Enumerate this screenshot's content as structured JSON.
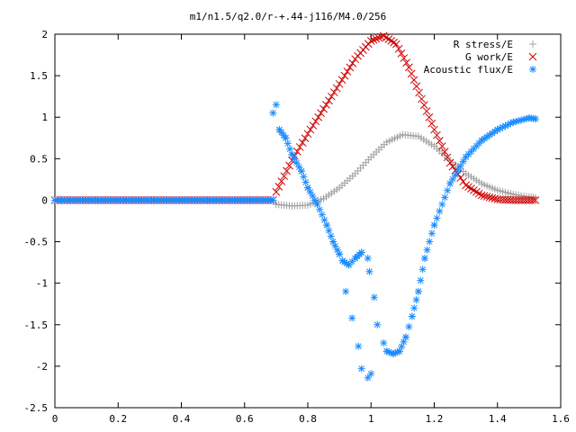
{
  "chart_data": {
    "type": "scatter",
    "title": "m1/n1.5/q2.0/r-+.44-j116/M4.0/256",
    "xlabel": "",
    "ylabel": "",
    "xlim": [
      0,
      1.6
    ],
    "ylim": [
      -2.5,
      2
    ],
    "grid": false,
    "legend_position": "top-right",
    "x_ticks": [
      "0",
      "0.2",
      "0.4",
      "0.6",
      "0.8",
      "1",
      "1.2",
      "1.4",
      "1.6"
    ],
    "y_ticks": [
      "2",
      "1.5",
      "1",
      "0.5",
      "0",
      "-0.5",
      "-1",
      "-1.5",
      "-2",
      "-2.5"
    ],
    "series": [
      {
        "name": "R stress/E",
        "color": "#a0a0a0",
        "marker": "plus",
        "points": [
          [
            0.0,
            0.0
          ],
          [
            0.69,
            0.0
          ],
          [
            0.7,
            -0.05
          ],
          [
            0.75,
            -0.07
          ],
          [
            0.8,
            -0.06
          ],
          [
            0.85,
            0.02
          ],
          [
            0.9,
            0.15
          ],
          [
            0.95,
            0.32
          ],
          [
            1.0,
            0.52
          ],
          [
            1.05,
            0.7
          ],
          [
            1.1,
            0.79
          ],
          [
            1.15,
            0.77
          ],
          [
            1.2,
            0.65
          ],
          [
            1.25,
            0.48
          ],
          [
            1.3,
            0.32
          ],
          [
            1.35,
            0.2
          ],
          [
            1.4,
            0.12
          ],
          [
            1.45,
            0.07
          ],
          [
            1.5,
            0.04
          ],
          [
            1.52,
            0.03
          ]
        ]
      },
      {
        "name": "G work/E",
        "color": "#cc0000",
        "marker": "cross",
        "points": [
          [
            0.0,
            0.0
          ],
          [
            0.69,
            0.0
          ],
          [
            0.7,
            0.1
          ],
          [
            0.75,
            0.48
          ],
          [
            0.8,
            0.8
          ],
          [
            0.85,
            1.1
          ],
          [
            0.9,
            1.4
          ],
          [
            0.95,
            1.7
          ],
          [
            1.0,
            1.92
          ],
          [
            1.04,
            1.98
          ],
          [
            1.08,
            1.88
          ],
          [
            1.12,
            1.6
          ],
          [
            1.16,
            1.22
          ],
          [
            1.2,
            0.85
          ],
          [
            1.25,
            0.45
          ],
          [
            1.3,
            0.18
          ],
          [
            1.35,
            0.06
          ],
          [
            1.4,
            0.01
          ],
          [
            1.45,
            0.0
          ],
          [
            1.52,
            0.0
          ]
        ]
      },
      {
        "name": "Acoustic flux/E",
        "color": "#1a8cff",
        "marker": "star",
        "points": [
          [
            0.0,
            0.0
          ],
          [
            0.69,
            0.0
          ],
          [
            0.69,
            1.05
          ],
          [
            0.7,
            1.15
          ],
          [
            0.71,
            0.85
          ],
          [
            0.73,
            0.75
          ],
          [
            0.75,
            0.55
          ],
          [
            0.78,
            0.35
          ],
          [
            0.8,
            0.15
          ],
          [
            0.83,
            -0.05
          ],
          [
            0.86,
            -0.3
          ],
          [
            0.88,
            -0.5
          ],
          [
            0.9,
            -0.65
          ],
          [
            0.91,
            -0.73
          ],
          [
            0.93,
            -0.78
          ],
          [
            0.95,
            -0.7
          ],
          [
            0.97,
            -0.63
          ],
          [
            0.99,
            -0.7
          ],
          [
            0.92,
            -1.1
          ],
          [
            0.94,
            -1.42
          ],
          [
            0.96,
            -1.76
          ],
          [
            0.97,
            -2.03
          ],
          [
            0.99,
            -2.14
          ],
          [
            1.0,
            -2.09
          ],
          [
            0.995,
            -0.86
          ],
          [
            1.01,
            -1.17
          ],
          [
            1.02,
            -1.5
          ],
          [
            1.04,
            -1.72
          ],
          [
            1.05,
            -1.82
          ],
          [
            1.07,
            -1.85
          ],
          [
            1.09,
            -1.82
          ],
          [
            1.11,
            -1.65
          ],
          [
            1.13,
            -1.4
          ],
          [
            1.15,
            -1.1
          ],
          [
            1.17,
            -0.7
          ],
          [
            1.2,
            -0.3
          ],
          [
            1.25,
            0.2
          ],
          [
            1.3,
            0.52
          ],
          [
            1.35,
            0.72
          ],
          [
            1.4,
            0.85
          ],
          [
            1.45,
            0.94
          ],
          [
            1.5,
            0.99
          ],
          [
            1.52,
            0.98
          ]
        ]
      }
    ]
  }
}
